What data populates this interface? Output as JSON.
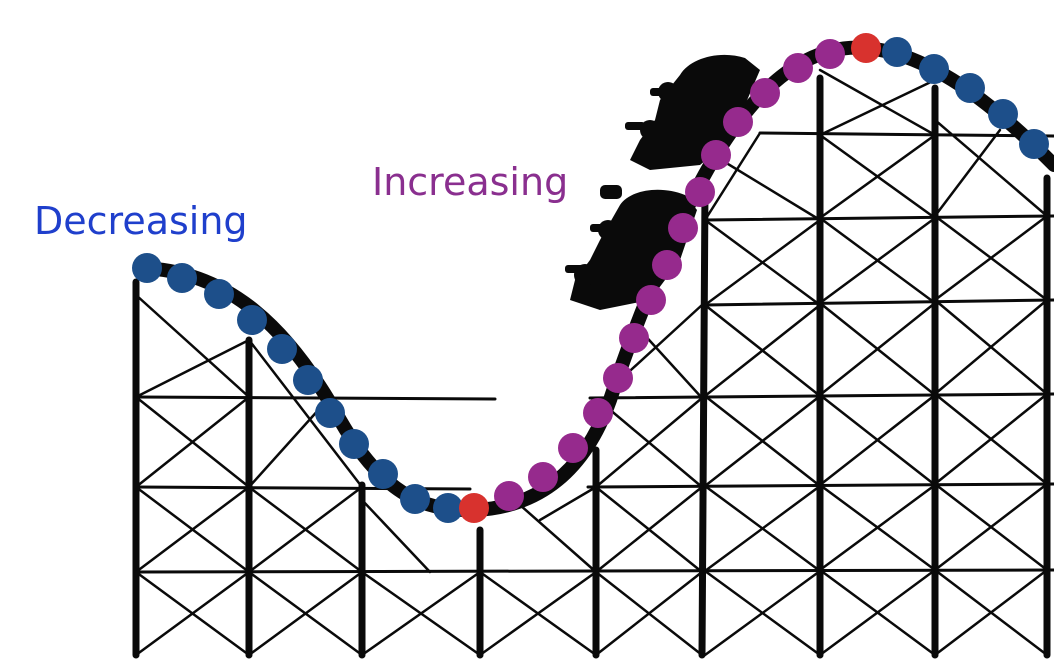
{
  "labels": {
    "decreasing": "Decreasing",
    "increasing": "Increasing"
  },
  "colors": {
    "decreasing": "#1d4f8a",
    "increasing": "#962a8d",
    "turning_point": "#d8322e",
    "track": "#0a0a0a",
    "label_decreasing": "#1f3fcc",
    "label_increasing": "#8a2f8f"
  },
  "icons": {
    "riders": "roller-coaster-car-silhouette"
  }
}
